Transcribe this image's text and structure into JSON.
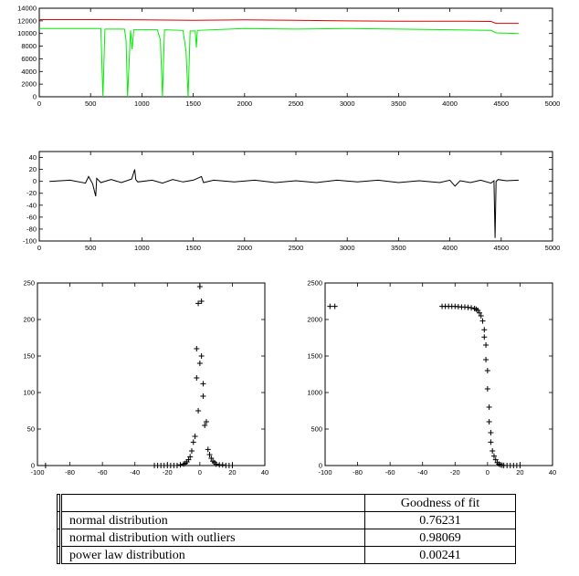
{
  "colors": {
    "series_red": "#e00000",
    "series_green": "#00ee00",
    "series_black": "#000000",
    "axis": "#000000"
  },
  "chart_data": [
    {
      "type": "line",
      "xlim": [
        0,
        5000
      ],
      "ylim": [
        0,
        14000
      ],
      "xticks": [
        0,
        500,
        1000,
        1500,
        2000,
        2500,
        3000,
        3500,
        4000,
        4500,
        5000
      ],
      "yticks": [
        0,
        2000,
        4000,
        6000,
        8000,
        10000,
        12000,
        14000
      ],
      "grid": false,
      "series": [
        {
          "color": "#e00000",
          "x": [
            0,
            500,
            1000,
            1500,
            2000,
            2500,
            3000,
            3500,
            4000,
            4400,
            4450,
            4670
          ],
          "y": [
            12200,
            12200,
            12150,
            12100,
            12150,
            12100,
            12000,
            11950,
            11950,
            11900,
            11600,
            11600
          ]
        },
        {
          "color": "#00ee00",
          "x": [
            0,
            500,
            600,
            620,
            640,
            700,
            830,
            845,
            860,
            890,
            905,
            920,
            1150,
            1180,
            1200,
            1220,
            1400,
            1430,
            1450,
            1470,
            1520,
            1530,
            1540,
            2000,
            2500,
            3000,
            3500,
            4000,
            4400,
            4450,
            4670
          ],
          "y": [
            10800,
            10800,
            10800,
            0,
            10700,
            10700,
            10700,
            9000,
            0,
            10500,
            7500,
            10600,
            10600,
            9000,
            0,
            10600,
            10500,
            7200,
            0,
            10400,
            10400,
            7800,
            10500,
            10800,
            10700,
            10800,
            10700,
            10600,
            10500,
            10100,
            10000
          ]
        }
      ]
    },
    {
      "type": "line",
      "xlim": [
        0,
        5000
      ],
      "ylim": [
        -100,
        50
      ],
      "xticks": [
        0,
        500,
        1000,
        1500,
        2000,
        2500,
        3000,
        3500,
        4000,
        4500,
        5000
      ],
      "yticks": [
        -100,
        -80,
        -60,
        -40,
        -20,
        0,
        20,
        40
      ],
      "grid": false,
      "series": [
        {
          "color": "#000000",
          "x": [
            100,
            300,
            450,
            480,
            520,
            550,
            560,
            600,
            700,
            800,
            900,
            930,
            940,
            960,
            1100,
            1200,
            1300,
            1400,
            1500,
            1580,
            1600,
            1700,
            1900,
            2100,
            2300,
            2500,
            2700,
            2900,
            3100,
            3300,
            3500,
            3700,
            3900,
            4000,
            4050,
            4100,
            4200,
            4300,
            4400,
            4430,
            4440,
            4450,
            4470,
            4550,
            4670
          ],
          "y": [
            0,
            2,
            -3,
            8,
            -4,
            -25,
            5,
            -2,
            3,
            -2,
            4,
            20,
            3,
            -1,
            2,
            -3,
            3,
            -1,
            2,
            8,
            -2,
            2,
            -1,
            2,
            -2,
            1,
            -2,
            2,
            -1,
            2,
            -2,
            1,
            -2,
            2,
            -8,
            1,
            -2,
            2,
            -3,
            1,
            -95,
            0,
            3,
            1,
            2
          ]
        }
      ]
    },
    {
      "type": "scatter",
      "marker": "+",
      "xlim": [
        -100,
        40
      ],
      "ylim": [
        0,
        250
      ],
      "xticks": [
        -100,
        -80,
        -60,
        -40,
        -20,
        0,
        20,
        40
      ],
      "yticks": [
        0,
        50,
        100,
        150,
        200,
        250
      ],
      "grid": false,
      "x": [
        -95,
        -28,
        -26,
        -24,
        -22,
        -20,
        -18,
        -16,
        -14,
        -12,
        -10,
        -9,
        -8,
        -7,
        -6,
        -5,
        -4,
        -3,
        -2,
        -2,
        -1,
        -1,
        0,
        0,
        1,
        1,
        2,
        2,
        3,
        4,
        5,
        6,
        7,
        8,
        9,
        10,
        12,
        14,
        16,
        18,
        20
      ],
      "y": [
        0,
        0,
        0,
        0,
        0,
        0,
        0,
        0,
        0,
        1,
        2,
        3,
        5,
        8,
        12,
        20,
        32,
        40,
        120,
        160,
        75,
        222,
        245,
        140,
        225,
        150,
        95,
        112,
        55,
        60,
        22,
        15,
        10,
        6,
        4,
        2,
        1,
        1,
        0,
        0,
        0
      ]
    },
    {
      "type": "scatter",
      "marker": "+",
      "xlim": [
        -100,
        40
      ],
      "ylim": [
        0,
        2500
      ],
      "xticks": [
        -100,
        -80,
        -60,
        -40,
        -20,
        0,
        20,
        40
      ],
      "yticks": [
        0,
        500,
        1000,
        1500,
        2000,
        2500
      ],
      "grid": false,
      "x": [
        -97,
        -94,
        -28,
        -26,
        -24,
        -22,
        -20,
        -18,
        -16,
        -14,
        -12,
        -10,
        -8,
        -7,
        -6,
        -5,
        -4,
        -3,
        -2,
        -2,
        -1,
        -1,
        0,
        0,
        1,
        1,
        2,
        2,
        3,
        4,
        5,
        6,
        7,
        8,
        9,
        10,
        12,
        14,
        16,
        18,
        20
      ],
      "y": [
        2180,
        2180,
        2180,
        2180,
        2180,
        2180,
        2180,
        2175,
        2170,
        2170,
        2165,
        2160,
        2150,
        2140,
        2125,
        2090,
        2050,
        1980,
        1860,
        1760,
        1650,
        1450,
        1300,
        1050,
        800,
        600,
        450,
        320,
        200,
        130,
        80,
        40,
        20,
        10,
        5,
        2,
        0,
        0,
        0,
        0,
        0
      ]
    }
  ],
  "table": {
    "header": [
      "",
      "Goodness of fit"
    ],
    "rows": [
      {
        "label": "normal distribution",
        "value": "0.76231"
      },
      {
        "label": "normal distribution with outliers",
        "value": "0.98069"
      },
      {
        "label": "power law distribution",
        "value": "0.00241"
      }
    ]
  }
}
